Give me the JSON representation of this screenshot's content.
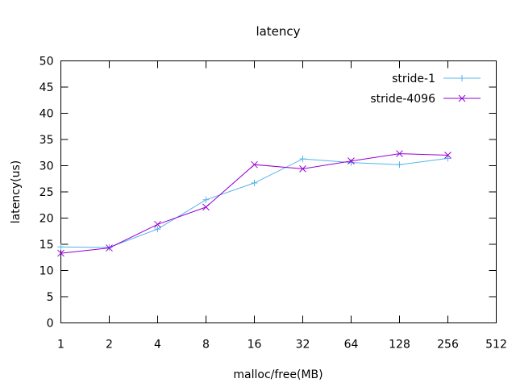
{
  "chart_data": {
    "type": "line",
    "title": "latency",
    "xlabel": "malloc/free(MB)",
    "ylabel": "latency(us)",
    "x_scale": "log2",
    "x_ticks": [
      1,
      2,
      4,
      8,
      16,
      32,
      64,
      128,
      256,
      512
    ],
    "x_tick_labels": [
      "1",
      "2",
      "4",
      "8",
      "16",
      "32",
      "64",
      "128",
      "256",
      "512"
    ],
    "xlim": [
      1,
      512
    ],
    "ylim": [
      0,
      50
    ],
    "y_ticks": [
      0,
      5,
      10,
      15,
      20,
      25,
      30,
      35,
      40,
      45,
      50
    ],
    "y_tick_labels": [
      "0",
      "5",
      "10",
      "15",
      "20",
      "25",
      "30",
      "35",
      "40",
      "45",
      "50"
    ],
    "grid": false,
    "legend_position": "top-right",
    "x": [
      1,
      2,
      4,
      8,
      16,
      32,
      64,
      128,
      256
    ],
    "series": [
      {
        "name": "stride-1",
        "color": "#56b4e9",
        "marker": "plus",
        "values": [
          14.5,
          14.4,
          17.9,
          23.5,
          26.7,
          31.3,
          30.6,
          30.2,
          31.4
        ]
      },
      {
        "name": "stride-4096",
        "color": "#9400d3",
        "marker": "cross",
        "values": [
          13.3,
          14.3,
          18.8,
          22.1,
          30.2,
          29.4,
          30.9,
          32.3,
          32.0
        ]
      }
    ]
  }
}
